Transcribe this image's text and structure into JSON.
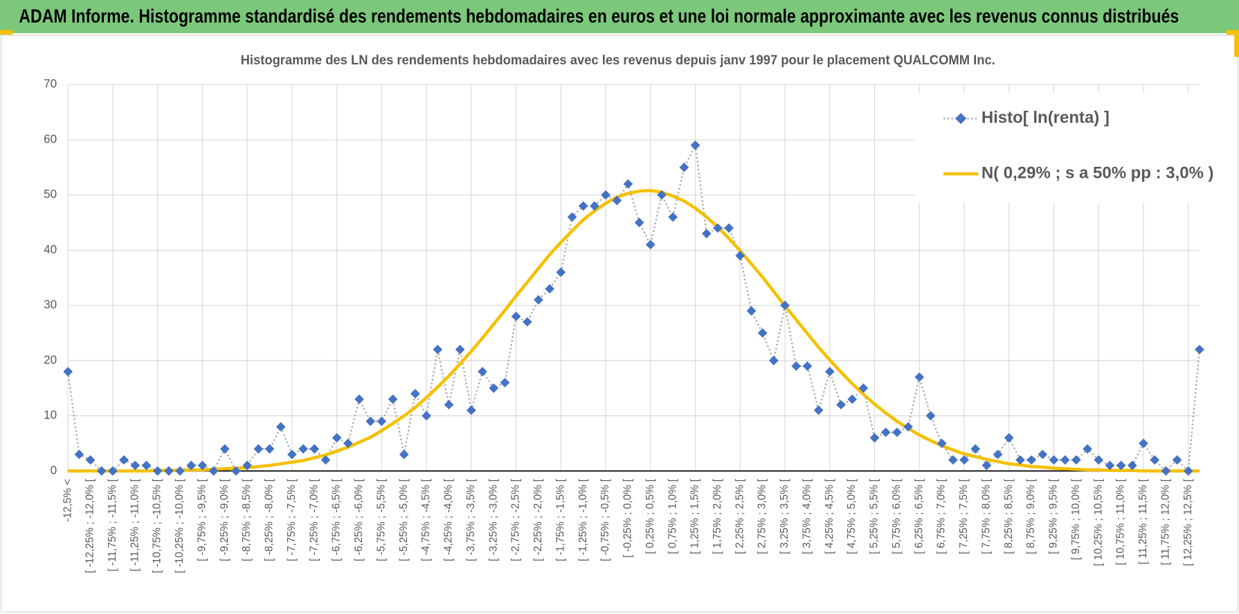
{
  "header": {
    "title": "ADAM Informe. Histogramme standardisé des rendements hebdomadaires en euros et une loi normale approximante avec les revenus connus distribués"
  },
  "chart_data": {
    "type": "line",
    "title": "Histogramme  des LN des rendements hebdomadaires avec les revenus depuis janv 1997 pour le placement QUALCOMM Inc.",
    "categories": [
      "-12,5% <",
      null,
      "[ -12,25% ; -12,0% [",
      null,
      "[ -11,75% ; -11,5% [",
      null,
      "[ -11,25% ; -11,0% [",
      null,
      "[ -10,75% ; -10,5% [",
      null,
      "[ -10,25% ; -10,0% [",
      null,
      "[ -9,75% ; -9,5% [",
      null,
      "[ -9,25% ; -9,0% [",
      null,
      "[ -8,75% ; -8,5% [",
      null,
      "[ -8,25% ; -8,0% [",
      null,
      "[ -7,75% ; -7,5% [",
      null,
      "[ -7,25% ; -7,0% [",
      null,
      "[ -6,75% ; -6,5% [",
      null,
      "[ -6,25% ; -6,0% [",
      null,
      "[ -5,75% ; -5,5% [",
      null,
      "[ -5,25% ; -5,0% [",
      null,
      "[ -4,75% ; -4,5% [",
      null,
      "[ -4,25% ; -4,0% [",
      null,
      "[ -3,75% ; -3,5% [",
      null,
      "[ -3,25% ; -3,0% [",
      null,
      "[ -2,75% ; -2,5% [",
      null,
      "[ -2,25% ; -2,0% [",
      null,
      "[ -1,75% ; -1,5% [",
      null,
      "[ -1,25% ; -1,0% [",
      null,
      "[ -0,75% ; -0,5% [",
      null,
      "[ -0,25% ; 0,0% [",
      null,
      "[ 0,25% ; 0,5% [",
      null,
      "[ 0,75% ; 1,0% [",
      null,
      "[ 1,25% ; 1,5% [",
      null,
      "[ 1,75% ; 2,0% [",
      null,
      "[ 2,25% ; 2,5% [",
      null,
      "[ 2,75% ; 3,0% [",
      null,
      "[ 3,25% ; 3,5% [",
      null,
      "[ 3,75% ; 4,0% [",
      null,
      "[ 4,25% ; 4,5% [",
      null,
      "[ 4,75% ; 5,0% [",
      null,
      "[ 5,25% ; 5,5% [",
      null,
      "[ 5,75% ; 6,0% [",
      null,
      "[ 6,25% ; 6,5% [",
      null,
      "[ 6,75% ; 7,0% [",
      null,
      "[ 7,25% ; 7,5% [",
      null,
      "[ 7,75% ; 8,0% [",
      null,
      "[ 8,25% ; 8,5% [",
      null,
      "[ 8,75% ; 9,0% [",
      null,
      "[ 9,25% ; 9,5% [",
      null,
      "[ 9,75% ; 10,0% [",
      null,
      "[ 10,25% ; 10,5% [",
      null,
      "[ 10,75% ; 11,0% [",
      null,
      "[ 11,25% ; 11,5% [",
      null,
      "[ 11,75% ; 12,0% [",
      null,
      "[ 12,25% ; 12,5% [",
      null
    ],
    "series": [
      {
        "name": "Histo[ ln(renta) ]",
        "color": "#4472c4",
        "line_color": "#a6a6a6",
        "line_style": "dotted",
        "marker": "diamond",
        "values": [
          18,
          3,
          2,
          0,
          0,
          2,
          1,
          1,
          0,
          0,
          0,
          1,
          1,
          0,
          4,
          0,
          1,
          4,
          4,
          8,
          3,
          4,
          4,
          2,
          6,
          5,
          13,
          9,
          9,
          13,
          3,
          14,
          10,
          22,
          12,
          22,
          11,
          18,
          15,
          16,
          28,
          27,
          31,
          33,
          36,
          46,
          48,
          48,
          50,
          49,
          52,
          45,
          41,
          50,
          46,
          55,
          59,
          43,
          44,
          44,
          39,
          29,
          25,
          20,
          30,
          19,
          19,
          11,
          18,
          12,
          13,
          15,
          6,
          7,
          7,
          8,
          17,
          10,
          5,
          2,
          2,
          4,
          1,
          3,
          6,
          2,
          2,
          3,
          2,
          2,
          2,
          4,
          2,
          1,
          1,
          1,
          5,
          2,
          0,
          2,
          0,
          22
        ]
      },
      {
        "name": "N( 0,29% ; s a 50% pp : 3,0% )",
        "color": "#f5c000",
        "line_color": "#f5c000",
        "line_style": "solid",
        "marker": "none",
        "values": [
          0.0,
          0.0,
          0.0,
          0.0,
          0.0,
          0.0,
          0.0,
          0.0,
          0.1,
          0.1,
          0.1,
          0.2,
          0.2,
          0.3,
          0.4,
          0.5,
          0.6,
          0.8,
          1.0,
          1.3,
          1.6,
          1.9,
          2.4,
          2.9,
          3.6,
          4.3,
          5.2,
          6.1,
          7.3,
          8.6,
          10.0,
          11.5,
          13.3,
          15.2,
          17.2,
          19.4,
          21.7,
          24.1,
          26.6,
          29.1,
          31.7,
          34.2,
          36.7,
          39.2,
          41.4,
          43.5,
          45.5,
          47.1,
          48.5,
          49.6,
          50.3,
          50.7,
          50.8,
          50.5,
          49.8,
          48.9,
          47.6,
          46.0,
          44.2,
          42.1,
          39.9,
          37.5,
          35.1,
          32.5,
          29.9,
          27.4,
          24.9,
          22.4,
          20.1,
          17.9,
          15.8,
          13.9,
          12.1,
          10.5,
          9.0,
          7.7,
          6.5,
          5.5,
          4.6,
          3.8,
          3.1,
          2.6,
          2.1,
          1.7,
          1.3,
          1.1,
          0.8,
          0.7,
          0.5,
          0.4,
          0.3,
          0.2,
          0.2,
          0.1,
          0.1,
          0.1,
          0.0,
          0.0,
          0.0,
          0.0,
          0.0,
          0.0
        ]
      }
    ],
    "ylim": [
      0,
      70
    ],
    "yticks": [
      0,
      10,
      20,
      30,
      40,
      50,
      60,
      70
    ],
    "grid": true,
    "legend": "top-right"
  }
}
